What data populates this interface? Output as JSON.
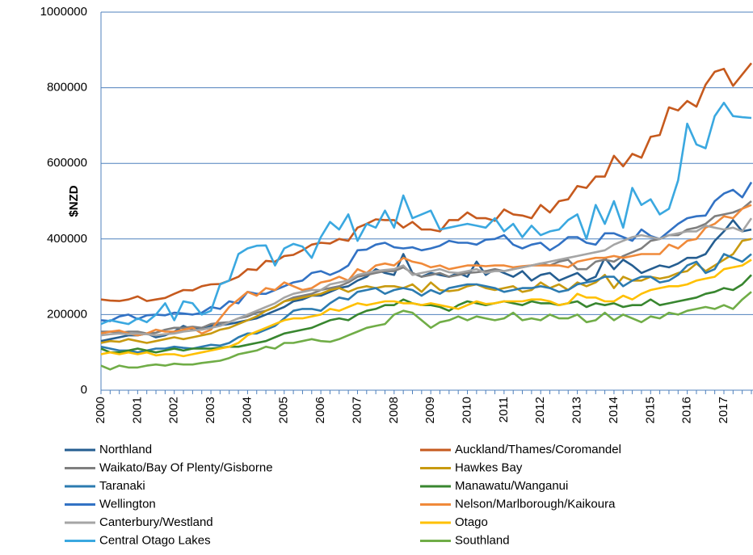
{
  "chart_data": {
    "type": "line",
    "y_label": "$NZD",
    "ylim": [
      0,
      1000000
    ],
    "yticks": [
      0,
      200000,
      400000,
      600000,
      800000,
      1000000
    ],
    "grid": true,
    "categories": [
      "2000",
      null,
      null,
      null,
      "2001",
      null,
      null,
      null,
      "2002",
      null,
      null,
      null,
      "2003",
      null,
      null,
      null,
      "2004",
      null,
      null,
      null,
      "2005",
      null,
      null,
      null,
      "2006",
      null,
      null,
      null,
      "2007",
      null,
      null,
      null,
      "2008",
      null,
      null,
      null,
      "2009",
      null,
      null,
      null,
      "2010",
      null,
      null,
      null,
      "2011",
      null,
      null,
      null,
      "2012",
      null,
      null,
      null,
      "2013",
      null,
      null,
      null,
      "2014",
      null,
      null,
      null,
      "2015",
      null,
      null,
      null,
      "2016",
      null,
      null,
      null,
      "2017",
      null,
      null,
      null
    ],
    "series": [
      {
        "name": "Northland",
        "color": "#255e91",
        "values": [
          130000,
          135000,
          140000,
          145000,
          145000,
          150000,
          140000,
          145000,
          155000,
          170000,
          160000,
          165000,
          170000,
          172000,
          175000,
          180000,
          185000,
          190000,
          200000,
          210000,
          220000,
          235000,
          240000,
          250000,
          250000,
          260000,
          270000,
          275000,
          290000,
          300000,
          320000,
          310000,
          305000,
          360000,
          310000,
          300000,
          310000,
          305000,
          300000,
          310000,
          300000,
          340000,
          305000,
          320000,
          310000,
          300000,
          315000,
          290000,
          305000,
          310000,
          290000,
          300000,
          310000,
          290000,
          300000,
          350000,
          320000,
          345000,
          330000,
          310000,
          320000,
          330000,
          325000,
          335000,
          350000,
          350000,
          360000,
          395000,
          420000,
          450000,
          420000,
          425000
        ]
      },
      {
        "name": "Auckland/Thames/Coromandel",
        "color": "#c65a1e",
        "values": [
          240000,
          237000,
          236000,
          240000,
          248000,
          236000,
          240000,
          244000,
          255000,
          265000,
          264000,
          275000,
          280000,
          281000,
          290000,
          300000,
          320000,
          318000,
          342000,
          340000,
          355000,
          358000,
          370000,
          385000,
          390000,
          388000,
          400000,
          395000,
          430000,
          440000,
          452000,
          450000,
          450000,
          430000,
          445000,
          425000,
          425000,
          420000,
          450000,
          450000,
          470000,
          455000,
          455000,
          448000,
          478000,
          465000,
          462000,
          455000,
          490000,
          470000,
          500000,
          505000,
          540000,
          535000,
          565000,
          565000,
          620000,
          592000,
          625000,
          615000,
          670000,
          675000,
          748000,
          740000,
          765000,
          750000,
          808000,
          842000,
          850000,
          805000,
          835000,
          865000
        ]
      },
      {
        "name": "Waikato/Bay Of Plenty/Gisborne",
        "color": "#7f7f7f",
        "values": [
          155000,
          155000,
          152000,
          155000,
          155000,
          150000,
          152000,
          160000,
          165000,
          165000,
          168000,
          165000,
          175000,
          178000,
          180000,
          190000,
          195000,
          205000,
          210000,
          220000,
          235000,
          245000,
          250000,
          255000,
          265000,
          270000,
          275000,
          285000,
          300000,
          305000,
          310000,
          315000,
          315000,
          325000,
          310000,
          300000,
          305000,
          310000,
          300000,
          305000,
          310000,
          312000,
          315000,
          320000,
          315000,
          320000,
          325000,
          330000,
          335000,
          330000,
          340000,
          345000,
          320000,
          320000,
          340000,
          345000,
          340000,
          355000,
          365000,
          375000,
          395000,
          400000,
          410000,
          410000,
          425000,
          430000,
          440000,
          460000,
          465000,
          470000,
          480000,
          500000
        ]
      },
      {
        "name": "Hawkes Bay",
        "color": "#c89a10",
        "values": [
          125000,
          130000,
          128000,
          135000,
          130000,
          125000,
          130000,
          135000,
          140000,
          135000,
          140000,
          145000,
          150000,
          160000,
          165000,
          175000,
          185000,
          195000,
          210000,
          220000,
          235000,
          240000,
          245000,
          250000,
          255000,
          265000,
          270000,
          260000,
          270000,
          275000,
          270000,
          275000,
          275000,
          270000,
          280000,
          260000,
          285000,
          265000,
          262000,
          265000,
          275000,
          280000,
          270000,
          265000,
          270000,
          275000,
          260000,
          265000,
          285000,
          270000,
          280000,
          265000,
          285000,
          275000,
          285000,
          305000,
          270000,
          300000,
          290000,
          290000,
          300000,
          295000,
          300000,
          310000,
          315000,
          335000,
          315000,
          330000,
          345000,
          360000,
          395000,
          400000
        ]
      },
      {
        "name": "Taranaki",
        "color": "#2c7bb0",
        "values": [
          115000,
          110000,
          105000,
          105000,
          100000,
          105000,
          110000,
          110000,
          115000,
          112000,
          110000,
          115000,
          120000,
          118000,
          125000,
          140000,
          150000,
          150000,
          160000,
          170000,
          190000,
          210000,
          215000,
          215000,
          210000,
          230000,
          245000,
          240000,
          260000,
          265000,
          270000,
          255000,
          265000,
          270000,
          265000,
          250000,
          265000,
          255000,
          270000,
          275000,
          280000,
          280000,
          275000,
          270000,
          260000,
          265000,
          270000,
          270000,
          275000,
          270000,
          260000,
          265000,
          280000,
          285000,
          290000,
          300000,
          300000,
          275000,
          290000,
          300000,
          300000,
          285000,
          290000,
          305000,
          330000,
          340000,
          310000,
          320000,
          360000,
          350000,
          340000,
          360000
        ]
      },
      {
        "name": "Manawatu/Wanganui",
        "color": "#38862f",
        "values": [
          110000,
          100000,
          100000,
          105000,
          110000,
          105000,
          100000,
          105000,
          110000,
          105000,
          110000,
          110000,
          110000,
          112000,
          115000,
          115000,
          120000,
          125000,
          130000,
          140000,
          150000,
          155000,
          160000,
          165000,
          175000,
          185000,
          190000,
          185000,
          200000,
          210000,
          215000,
          225000,
          225000,
          240000,
          230000,
          225000,
          225000,
          220000,
          210000,
          225000,
          235000,
          230000,
          225000,
          230000,
          235000,
          230000,
          225000,
          235000,
          230000,
          230000,
          225000,
          230000,
          235000,
          220000,
          230000,
          225000,
          230000,
          220000,
          225000,
          225000,
          240000,
          225000,
          230000,
          235000,
          240000,
          245000,
          255000,
          260000,
          270000,
          265000,
          280000,
          305000
        ]
      },
      {
        "name": "Wellington",
        "color": "#3272c4",
        "values": [
          185000,
          183000,
          195000,
          200000,
          188000,
          198000,
          200000,
          198000,
          205000,
          203000,
          200000,
          205000,
          220000,
          215000,
          235000,
          230000,
          260000,
          255000,
          255000,
          265000,
          275000,
          285000,
          290000,
          310000,
          315000,
          305000,
          315000,
          330000,
          370000,
          372000,
          385000,
          390000,
          378000,
          375000,
          378000,
          370000,
          375000,
          382000,
          395000,
          390000,
          390000,
          385000,
          398000,
          400000,
          410000,
          385000,
          375000,
          385000,
          390000,
          370000,
          385000,
          405000,
          405000,
          390000,
          385000,
          415000,
          415000,
          405000,
          395000,
          425000,
          408000,
          400000,
          420000,
          440000,
          455000,
          460000,
          462000,
          500000,
          520000,
          530000,
          510000,
          550000
        ]
      },
      {
        "name": "Nelson/Marlborough/Kaikoura",
        "color": "#f08a3a",
        "values": [
          150000,
          155000,
          158000,
          150000,
          145000,
          150000,
          160000,
          155000,
          155000,
          160000,
          165000,
          150000,
          160000,
          190000,
          220000,
          240000,
          260000,
          250000,
          270000,
          265000,
          285000,
          275000,
          265000,
          270000,
          285000,
          290000,
          300000,
          290000,
          320000,
          310000,
          330000,
          335000,
          330000,
          350000,
          340000,
          335000,
          325000,
          330000,
          320000,
          325000,
          330000,
          330000,
          328000,
          330000,
          330000,
          325000,
          328000,
          330000,
          330000,
          330000,
          330000,
          325000,
          340000,
          345000,
          350000,
          350000,
          355000,
          350000,
          355000,
          360000,
          360000,
          360000,
          385000,
          375000,
          395000,
          400000,
          430000,
          440000,
          460000,
          455000,
          480000,
          490000
        ]
      },
      {
        "name": "Canterbury/Westland",
        "color": "#a5a5a5",
        "values": [
          145000,
          148000,
          150000,
          148000,
          150000,
          148000,
          145000,
          148000,
          150000,
          155000,
          158000,
          160000,
          165000,
          170000,
          180000,
          190000,
          200000,
          210000,
          220000,
          230000,
          245000,
          255000,
          260000,
          265000,
          265000,
          280000,
          285000,
          290000,
          305000,
          310000,
          315000,
          318000,
          320000,
          330000,
          305000,
          310000,
          315000,
          320000,
          312000,
          310000,
          315000,
          320000,
          310000,
          315000,
          315000,
          320000,
          325000,
          330000,
          335000,
          340000,
          345000,
          350000,
          355000,
          360000,
          365000,
          370000,
          385000,
          395000,
          405000,
          410000,
          405000,
          400000,
          410000,
          415000,
          420000,
          420000,
          435000,
          430000,
          425000,
          430000,
          420000,
          455000
        ]
      },
      {
        "name": "Otago",
        "color": "#ffc000",
        "values": [
          95000,
          100000,
          95000,
          100000,
          95000,
          100000,
          92000,
          95000,
          95000,
          90000,
          95000,
          100000,
          105000,
          110000,
          115000,
          125000,
          145000,
          155000,
          165000,
          175000,
          185000,
          190000,
          190000,
          195000,
          200000,
          215000,
          210000,
          220000,
          230000,
          225000,
          230000,
          235000,
          235000,
          230000,
          230000,
          225000,
          230000,
          225000,
          220000,
          215000,
          225000,
          235000,
          228000,
          230000,
          235000,
          235000,
          235000,
          240000,
          240000,
          235000,
          225000,
          230000,
          255000,
          245000,
          245000,
          235000,
          235000,
          250000,
          240000,
          255000,
          265000,
          270000,
          275000,
          275000,
          280000,
          290000,
          295000,
          300000,
          320000,
          325000,
          330000,
          345000
        ]
      },
      {
        "name": "Central Otago Lakes",
        "color": "#3aa8e0",
        "values": [
          175000,
          185000,
          180000,
          175000,
          190000,
          180000,
          200000,
          230000,
          185000,
          235000,
          230000,
          200000,
          210000,
          280000,
          290000,
          360000,
          375000,
          382000,
          383000,
          330000,
          375000,
          387000,
          380000,
          350000,
          405000,
          445000,
          425000,
          465000,
          395000,
          440000,
          430000,
          475000,
          430000,
          515000,
          455000,
          465000,
          475000,
          425000,
          430000,
          435000,
          440000,
          435000,
          430000,
          455000,
          420000,
          440000,
          405000,
          435000,
          410000,
          420000,
          425000,
          450000,
          465000,
          400000,
          490000,
          440000,
          500000,
          430000,
          535000,
          490000,
          505000,
          465000,
          480000,
          555000,
          705000,
          650000,
          640000,
          725000,
          760000,
          725000,
          722000,
          720000
        ]
      },
      {
        "name": "Southland",
        "color": "#70ad47",
        "values": [
          65000,
          55000,
          65000,
          60000,
          60000,
          65000,
          68000,
          65000,
          70000,
          68000,
          68000,
          72000,
          75000,
          78000,
          85000,
          95000,
          100000,
          105000,
          115000,
          110000,
          125000,
          125000,
          130000,
          135000,
          130000,
          128000,
          135000,
          145000,
          155000,
          165000,
          170000,
          175000,
          200000,
          210000,
          205000,
          185000,
          165000,
          180000,
          185000,
          195000,
          185000,
          195000,
          190000,
          185000,
          190000,
          205000,
          185000,
          190000,
          185000,
          200000,
          190000,
          190000,
          200000,
          180000,
          185000,
          205000,
          185000,
          200000,
          190000,
          180000,
          195000,
          190000,
          205000,
          200000,
          210000,
          215000,
          220000,
          215000,
          225000,
          215000,
          240000,
          260000
        ]
      }
    ]
  }
}
